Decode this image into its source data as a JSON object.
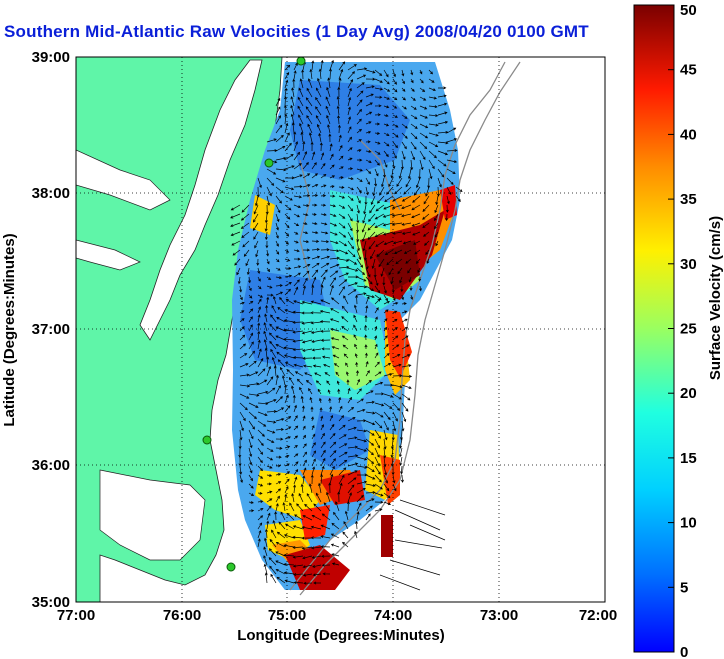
{
  "title": "Southern Mid-Atlantic Raw Velocities (1 Day Avg) 2008/04/20 0100 GMT",
  "map": {
    "x_label": "Longitude (Degrees:Minutes)",
    "y_label": "Latitude (Degrees:Minutes)",
    "x_ticks": [
      "77:00",
      "76:00",
      "75:00",
      "74:00",
      "73:00",
      "72:00"
    ],
    "y_ticks": [
      "39:00",
      "38:00",
      "37:00",
      "36:00",
      "35:00"
    ],
    "grid": "dotted",
    "land_color": "#5ff5a8",
    "ocean_color": "#ffffff"
  },
  "colorbar": {
    "label": "Surface Velocity (cm/s)",
    "ticks": [
      "50",
      "45",
      "40",
      "35",
      "30",
      "25",
      "20",
      "15",
      "10",
      "5",
      "0"
    ],
    "min": 0,
    "max": 50
  }
}
